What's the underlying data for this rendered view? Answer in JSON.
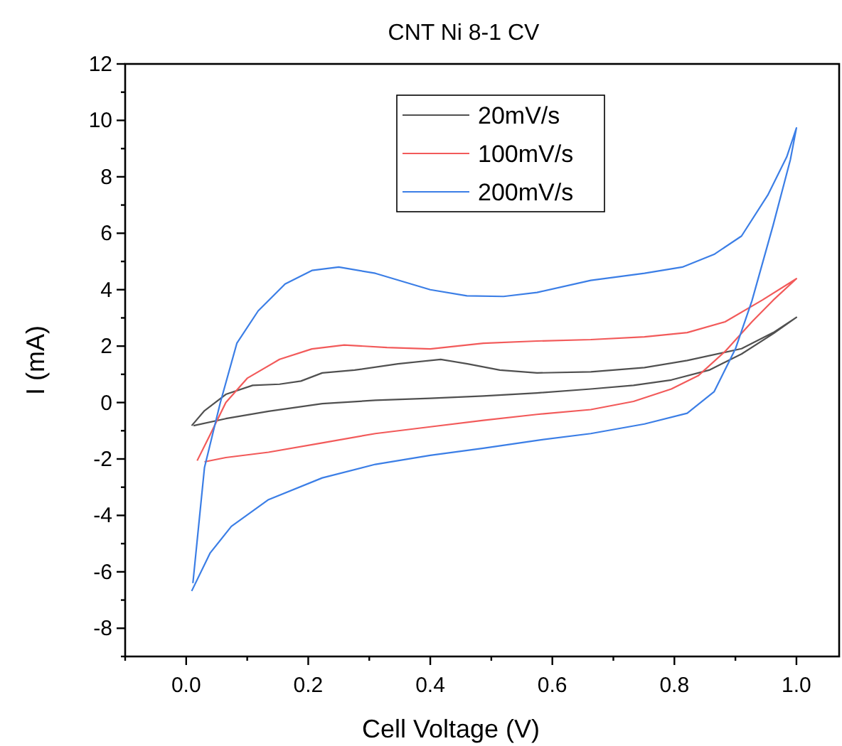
{
  "chart_data": {
    "type": "line",
    "title": "CNT Ni 8-1 CV",
    "xlabel": "Cell Voltage (V)",
    "ylabel": "I (mA)",
    "xlim": [
      -0.1,
      1.07
    ],
    "ylim": [
      -9,
      12
    ],
    "xticks": [
      {
        "value": -0.1,
        "label": null
      },
      {
        "value": 0,
        "label": "0.0"
      },
      {
        "value": 0.1,
        "label": null
      },
      {
        "value": 0.2,
        "label": "0.2"
      },
      {
        "value": 0.3,
        "label": null
      },
      {
        "value": 0.4,
        "label": "0.4"
      },
      {
        "value": 0.5,
        "label": null
      },
      {
        "value": 0.6,
        "label": "0.6"
      },
      {
        "value": 0.7,
        "label": null
      },
      {
        "value": 0.8,
        "label": "0.8"
      },
      {
        "value": 0.9,
        "label": null
      },
      {
        "value": 1,
        "label": "1.0"
      }
    ],
    "yticks": [
      {
        "value": -9,
        "label": null
      },
      -8,
      {
        "value": -7,
        "label": null
      },
      -6,
      {
        "value": -5,
        "label": null
      },
      -4,
      {
        "value": -3,
        "label": null
      },
      -2,
      {
        "value": -1,
        "label": null
      },
      0,
      {
        "value": 1,
        "label": null
      },
      2,
      {
        "value": 3,
        "label": null
      },
      4,
      {
        "value": 5,
        "label": null
      },
      6,
      {
        "value": 7,
        "label": null
      },
      8,
      {
        "value": 9,
        "label": null
      },
      10,
      {
        "value": 11,
        "label": null
      },
      12
    ],
    "grid": false,
    "legend": "top",
    "marker": "none",
    "line_style": "solid",
    "series": [
      {
        "name": "20mV/s",
        "color": "#505050",
        "x": [
          0.009,
          0.03,
          0.065,
          0.109,
          0.153,
          0.188,
          0.223,
          0.276,
          0.347,
          0.417,
          0.461,
          0.514,
          0.575,
          0.663,
          0.751,
          0.821,
          0.91,
          0.962,
          1.0,
          0.962,
          0.91,
          0.857,
          0.795,
          0.733,
          0.663,
          0.575,
          0.487,
          0.4,
          0.31,
          0.223,
          0.135,
          0.065,
          0.012
        ],
        "values": [
          -0.82,
          -0.29,
          0.29,
          0.61,
          0.65,
          0.76,
          1.05,
          1.15,
          1.37,
          1.53,
          1.37,
          1.15,
          1.05,
          1.09,
          1.24,
          1.49,
          1.91,
          2.48,
          3.02,
          2.44,
          1.72,
          1.15,
          0.8,
          0.61,
          0.48,
          0.34,
          0.23,
          0.15,
          0.08,
          -0.04,
          -0.31,
          -0.57,
          -0.82
        ]
      },
      {
        "name": "100mV/s",
        "color": "#f25a5a",
        "x": [
          0.018,
          0.039,
          0.065,
          0.1,
          0.153,
          0.206,
          0.259,
          0.329,
          0.4,
          0.487,
          0.575,
          0.663,
          0.751,
          0.821,
          0.883,
          0.944,
          1.0,
          0.962,
          0.927,
          0.883,
          0.839,
          0.795,
          0.733,
          0.663,
          0.575,
          0.487,
          0.4,
          0.31,
          0.223,
          0.135,
          0.065,
          0.03
        ],
        "values": [
          -2.06,
          -1.15,
          0,
          0.86,
          1.53,
          1.9,
          2.04,
          1.95,
          1.9,
          2.1,
          2.18,
          2.23,
          2.33,
          2.48,
          2.86,
          3.63,
          4.39,
          3.63,
          2.86,
          1.81,
          0.95,
          0.48,
          0.04,
          -0.25,
          -0.42,
          -0.63,
          -0.86,
          -1.1,
          -1.43,
          -1.76,
          -1.95,
          -2.1
        ]
      },
      {
        "name": "200mV/s",
        "color": "#3b7ee6",
        "x": [
          0.011,
          0.03,
          0.056,
          0.083,
          0.118,
          0.162,
          0.206,
          0.25,
          0.31,
          0.4,
          0.46,
          0.52,
          0.575,
          0.663,
          0.751,
          0.813,
          0.865,
          0.91,
          0.953,
          0.984,
          1.0,
          0.99,
          0.962,
          0.927,
          0.9,
          0.865,
          0.821,
          0.751,
          0.663,
          0.575,
          0.487,
          0.4,
          0.31,
          0.223,
          0.135,
          0.074,
          0.039,
          0.009
        ],
        "values": [
          -6.4,
          -2.3,
          0,
          2.1,
          3.25,
          4.2,
          4.68,
          4.8,
          4.58,
          4.0,
          3.78,
          3.76,
          3.9,
          4.33,
          4.58,
          4.8,
          5.25,
          5.9,
          7.35,
          8.7,
          9.73,
          8.6,
          6.3,
          3.6,
          1.9,
          0.38,
          -0.38,
          -0.76,
          -1.1,
          -1.34,
          -1.62,
          -1.87,
          -2.19,
          -2.67,
          -3.44,
          -4.39,
          -5.34,
          -6.68
        ]
      }
    ]
  }
}
